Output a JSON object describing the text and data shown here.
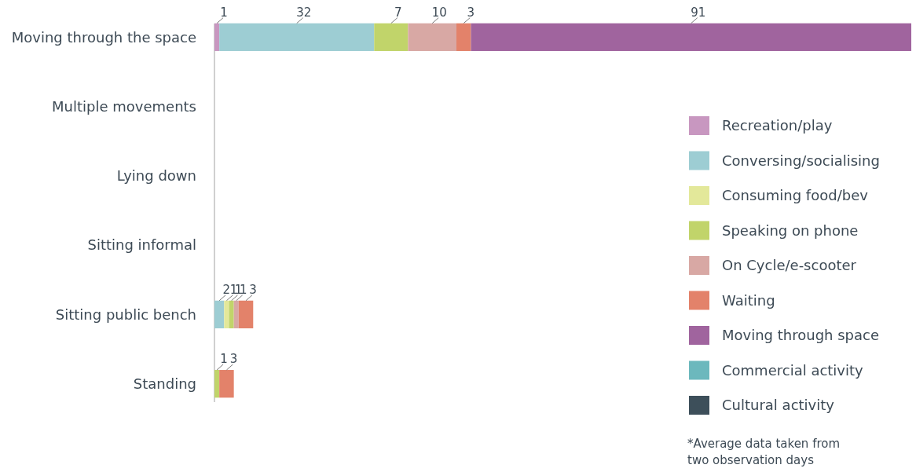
{
  "chart_data": {
    "type": "bar",
    "orientation": "horizontal",
    "stacked": true,
    "data_labels": true,
    "legend": "right",
    "categories": [
      "Moving through the space",
      "Multiple movements",
      "Lying down",
      "Sitting informal",
      "Sitting public bench",
      "Standing"
    ],
    "series": [
      {
        "name": "Recreation/play",
        "color": "#c897c0",
        "values": [
          1,
          null,
          null,
          null,
          null,
          null
        ]
      },
      {
        "name": "Conversing/socialising",
        "color": "#9dcdd3",
        "values": [
          32,
          null,
          null,
          null,
          2,
          null
        ]
      },
      {
        "name": "Consuming food/bev",
        "color": "#e3e89a",
        "values": [
          null,
          null,
          null,
          null,
          1,
          null
        ]
      },
      {
        "name": "Speaking on phone",
        "color": "#c1d46a",
        "values": [
          7,
          null,
          null,
          null,
          1,
          1
        ]
      },
      {
        "name": "On Cycle/e-scooter",
        "color": "#d8a8a4",
        "values": [
          10,
          null,
          null,
          null,
          1,
          null
        ]
      },
      {
        "name": "Waiting",
        "color": "#e3826a",
        "values": [
          3,
          null,
          null,
          null,
          3,
          3
        ]
      },
      {
        "name": "Moving through space",
        "color": "#a0649e",
        "values": [
          91,
          null,
          null,
          null,
          null,
          null
        ]
      },
      {
        "name": "Commercial activity",
        "color": "#6cb8bd",
        "values": [
          null,
          null,
          null,
          null,
          null,
          null
        ]
      },
      {
        "name": "Cultural activity",
        "color": "#3d4f5a",
        "values": [
          null,
          null,
          null,
          null,
          null,
          null
        ]
      }
    ],
    "annotations": [
      "*Average data taken from two observation days"
    ]
  }
}
